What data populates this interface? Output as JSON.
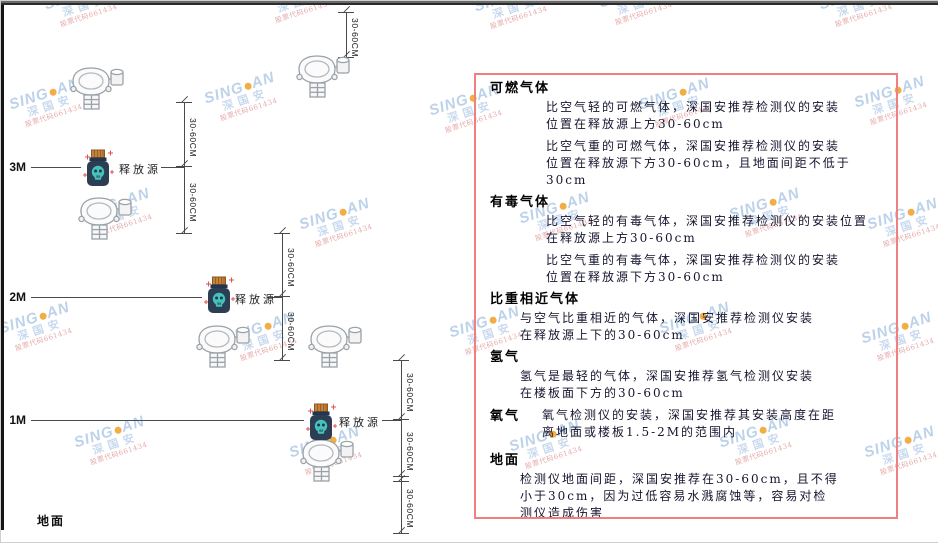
{
  "diagram": {
    "heights": [
      "3M",
      "2M",
      "1M"
    ],
    "ground_label": "地面",
    "release_source_label": "释放源",
    "dim_label": "30-60CM"
  },
  "watermark": {
    "brand_left": "SING",
    "brand_right": "AN",
    "cn": "深国安",
    "code": "股票代码661434"
  },
  "panel": {
    "sections": [
      {
        "heading": "可燃气体",
        "paras": [
          [
            "比空气轻的可燃气体，深国安推荐检测仪的安装",
            "位置在释放源上方30-60cm"
          ],
          [
            "比空气重的可燃气体，深国安推荐检测仪的安装",
            "位置在释放源下方30-60cm，且地面间距不低于",
            "30cm"
          ]
        ]
      },
      {
        "heading": "有毒气体",
        "paras": [
          [
            "比空气轻的有毒气体，深国安推荐检测仪的安装位置",
            "在释放源上方30-60cm"
          ],
          [
            "比空气重的有毒气体，深国安推荐检测仪的安装",
            "位置在释放源下方30-60cm"
          ]
        ]
      },
      {
        "heading": "比重相近气体",
        "paras": [
          [
            "与空气比重相近的气体，深国安推荐检测仪安装",
            "在释放源上下的30-60cm"
          ]
        ]
      },
      {
        "heading": "氢气",
        "paras": [
          [
            "氢气是最轻的气体，深国安推荐氢气检测仪安装",
            "在楼板面下方的30-60cm"
          ]
        ]
      },
      {
        "heading": "氧气",
        "paras": [
          [
            "氧气检测仪的安装，深国安推荐其安装高度在距",
            "离地面或楼板1.5-2M的范围内"
          ]
        ]
      },
      {
        "heading": "地面",
        "paras": [
          [
            "检测仪地面间距，深国安推荐在30-60cm，且不得",
            "小于30cm，因为过低容易水溅腐蚀等，容易对检",
            "测仪造成伤害"
          ]
        ]
      }
    ]
  },
  "colors": {
    "panel_border": "#f08080",
    "watermark_blue": "#b9d0e9",
    "watermark_dot_orange": "#f2a93b",
    "watermark_code_red": "#e5a7a7",
    "source_cap_orange": "#c9803a",
    "source_body_navy": "#2c3e54",
    "source_skull_teal": "#45c2ba",
    "sparkle_red": "#e0524d"
  }
}
